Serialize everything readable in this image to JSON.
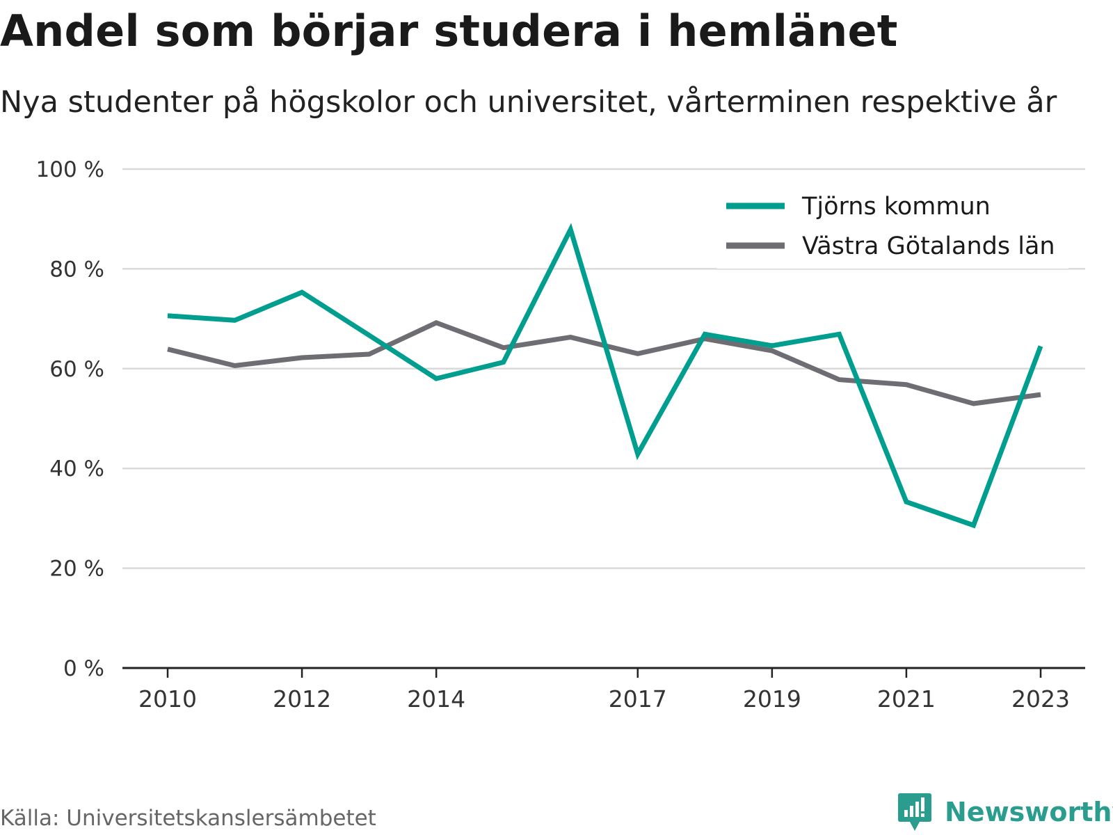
{
  "title": "Andel som börjar studera i hemlänet",
  "subtitle": "Nya studenter på högskolor och universitet, vårterminen respektive år",
  "source": "Källa: Universitetskanslersämbetet",
  "brand": "Newsworthy",
  "colors": {
    "teal": "#009e8e",
    "gray": "#6e6d73",
    "grid": "#d9d9d9",
    "axis": "#222222"
  },
  "chart_data": {
    "type": "line",
    "x": [
      2010,
      2011,
      2012,
      2013,
      2014,
      2015,
      2016,
      2017,
      2018,
      2019,
      2020,
      2021,
      2022,
      2023
    ],
    "x_tick_labels": [
      "2010",
      "2012",
      "2014",
      "2017",
      "2019",
      "2021",
      "2023"
    ],
    "y_tick_labels": [
      "0 %",
      "20 %",
      "40 %",
      "60 %",
      "80 %",
      "100 %"
    ],
    "ylim": [
      0,
      100
    ],
    "grid": true,
    "legend_position": "top-right",
    "series": [
      {
        "name": "Tjörns kommun",
        "color": "#009e8e",
        "values": [
          70.6,
          69.7,
          75.3,
          66.7,
          58.0,
          61.3,
          87.9,
          42.9,
          66.9,
          64.6,
          66.9,
          33.3,
          28.6,
          64.5
        ]
      },
      {
        "name": "Västra Götalands län",
        "color": "#6e6d73",
        "values": [
          63.9,
          60.6,
          62.2,
          62.9,
          69.2,
          64.2,
          66.3,
          63.0,
          66.0,
          63.6,
          57.8,
          56.8,
          53.0,
          54.8
        ]
      }
    ]
  }
}
